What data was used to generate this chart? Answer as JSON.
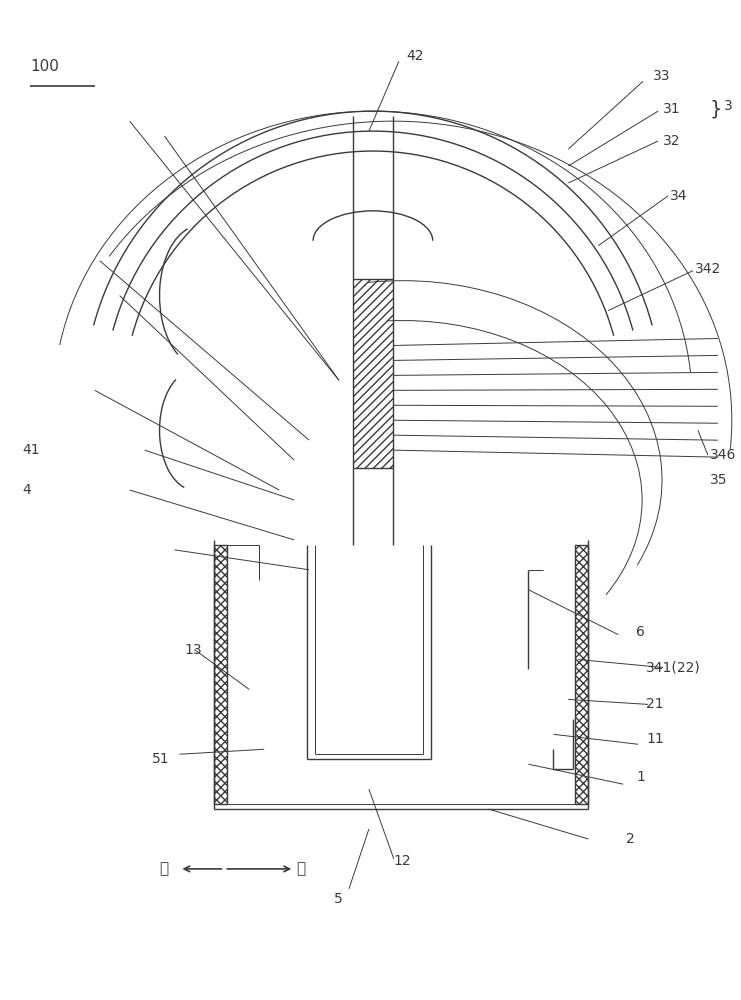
{
  "bg_color": "#ffffff",
  "line_color": "#3a3a3a",
  "fig_width": 7.41,
  "fig_height": 10.0,
  "dpi": 100
}
